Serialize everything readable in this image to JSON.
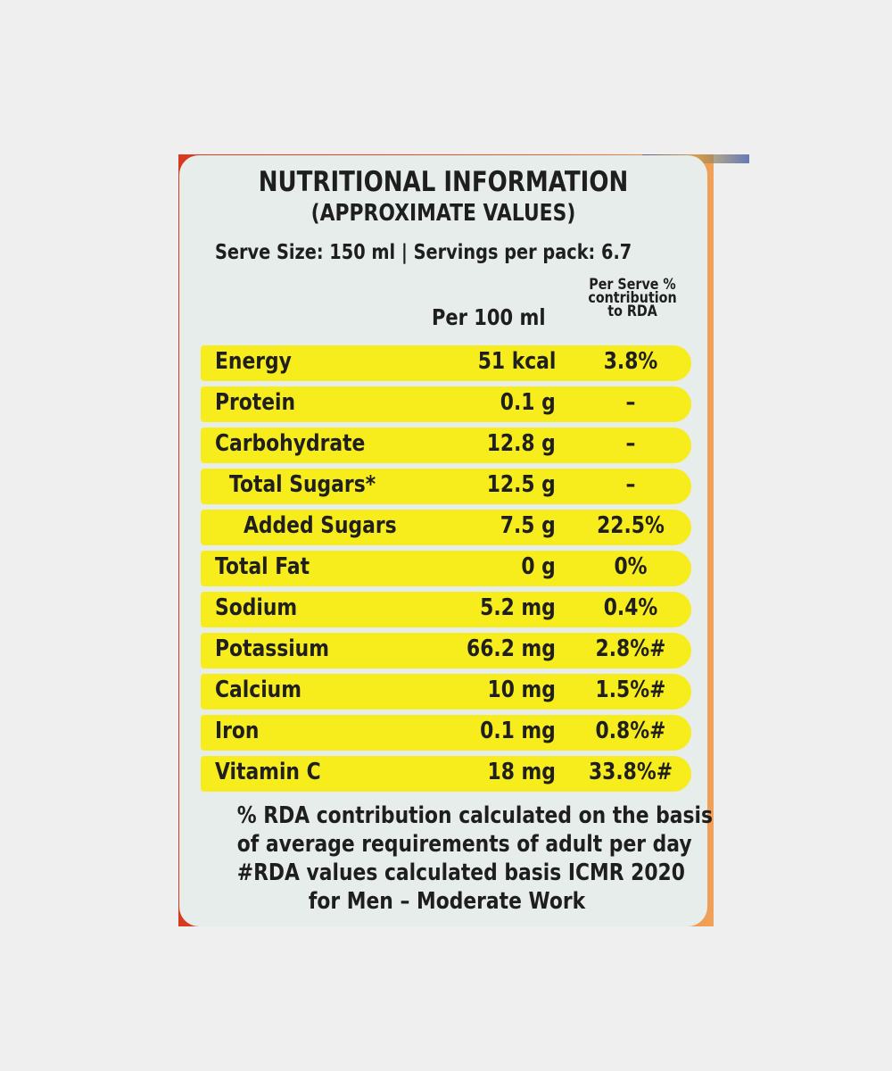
{
  "label": {
    "title": "NUTRITIONAL INFORMATION",
    "subtitle": "(APPROXIMATE VALUES)",
    "serve_line": "Serve Size: 150 ml | Servings per pack: 6.7",
    "col_per_100": "Per 100 ml",
    "col_rda_line1": "Per Serve %",
    "col_rda_line2": "contribution",
    "col_rda_line3": "to RDA"
  },
  "rows": [
    {
      "name": "Energy",
      "value": "51 kcal",
      "rda": "3.8%"
    },
    {
      "name": "Protein",
      "value": "0.1 g",
      "rda": "–"
    },
    {
      "name": "Carbohydrate",
      "value": "12.8 g",
      "rda": "–"
    },
    {
      "name": "Total Sugars*",
      "value": "12.5 g",
      "rda": "–"
    },
    {
      "name": "Added Sugars",
      "value": "7.5 g",
      "rda": "22.5%"
    },
    {
      "name": "Total Fat",
      "value": "0 g",
      "rda": "0%"
    },
    {
      "name": "Sodium",
      "value": "5.2 mg",
      "rda": "0.4%"
    },
    {
      "name": "Potassium",
      "value": "66.2 mg",
      "rda": "2.8%#"
    },
    {
      "name": "Calcium",
      "value": "10 mg",
      "rda": "1.5%#"
    },
    {
      "name": "Iron",
      "value": "0.1 mg",
      "rda": "0.8%#"
    },
    {
      "name": "Vitamin C",
      "value": "18 mg",
      "rda": "33.8%#"
    }
  ],
  "footer": {
    "line1": "% RDA contribution calculated on the basis",
    "line2": "of average requirements of adult per day",
    "line3": "#RDA values calculated basis ICMR 2020",
    "line4": "for Men – Moderate Work"
  },
  "colors": {
    "highlight": "#f7ec1c",
    "panel": "#e7edeb",
    "pack_red": "#d8391f"
  }
}
